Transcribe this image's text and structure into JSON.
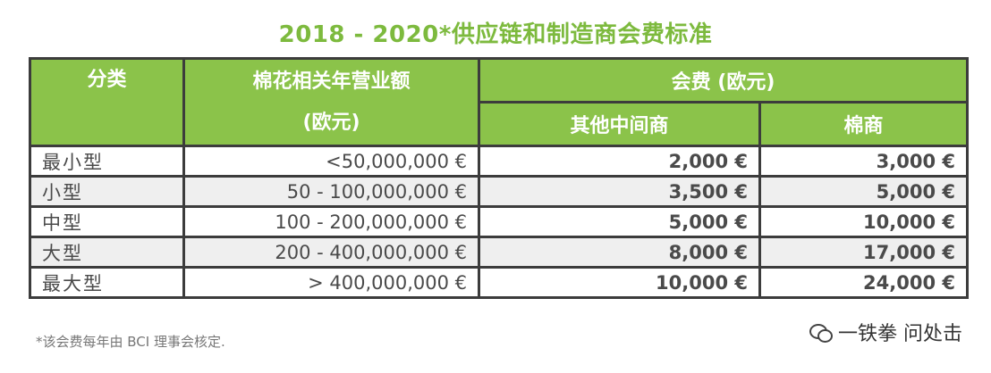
{
  "title": "2018 - 2020*供应链和制造商会费标准",
  "headers": {
    "category": "分类",
    "turnover_line1": "棉花相关年营业额",
    "turnover_line2": "(欧元)",
    "fee_group": "会费 (欧元)",
    "fee_other": "其他中间商",
    "fee_cotton": "棉商"
  },
  "rows": [
    {
      "category": "最小型",
      "turnover": "<50,000,000 €",
      "fee_other": "2,000 €",
      "fee_cotton": "3,000 €"
    },
    {
      "category": "小型",
      "turnover": "50 - 100,000,000 €",
      "fee_other": "3,500 €",
      "fee_cotton": "5,000 €"
    },
    {
      "category": "中型",
      "turnover": "100 - 200,000,000 €",
      "fee_other": "5,000 €",
      "fee_cotton": "10,000 €"
    },
    {
      "category": "大型",
      "turnover": "200 - 400,000,000 €",
      "fee_other": "8,000 €",
      "fee_cotton": "17,000 €"
    },
    {
      "category": "最大型",
      "turnover": "> 400,000,000 €",
      "fee_other": "10,000 €",
      "fee_cotton": "24,000 €"
    }
  ],
  "footnote": "*该会费每年由 BCI 理事会核定.",
  "watermark": "一铁拳 问处击",
  "watermark_icon": "wechat-icon",
  "colors": {
    "header_bg": "#8bc34a",
    "title": "#7dba3e",
    "border": "#3c3c3c"
  }
}
